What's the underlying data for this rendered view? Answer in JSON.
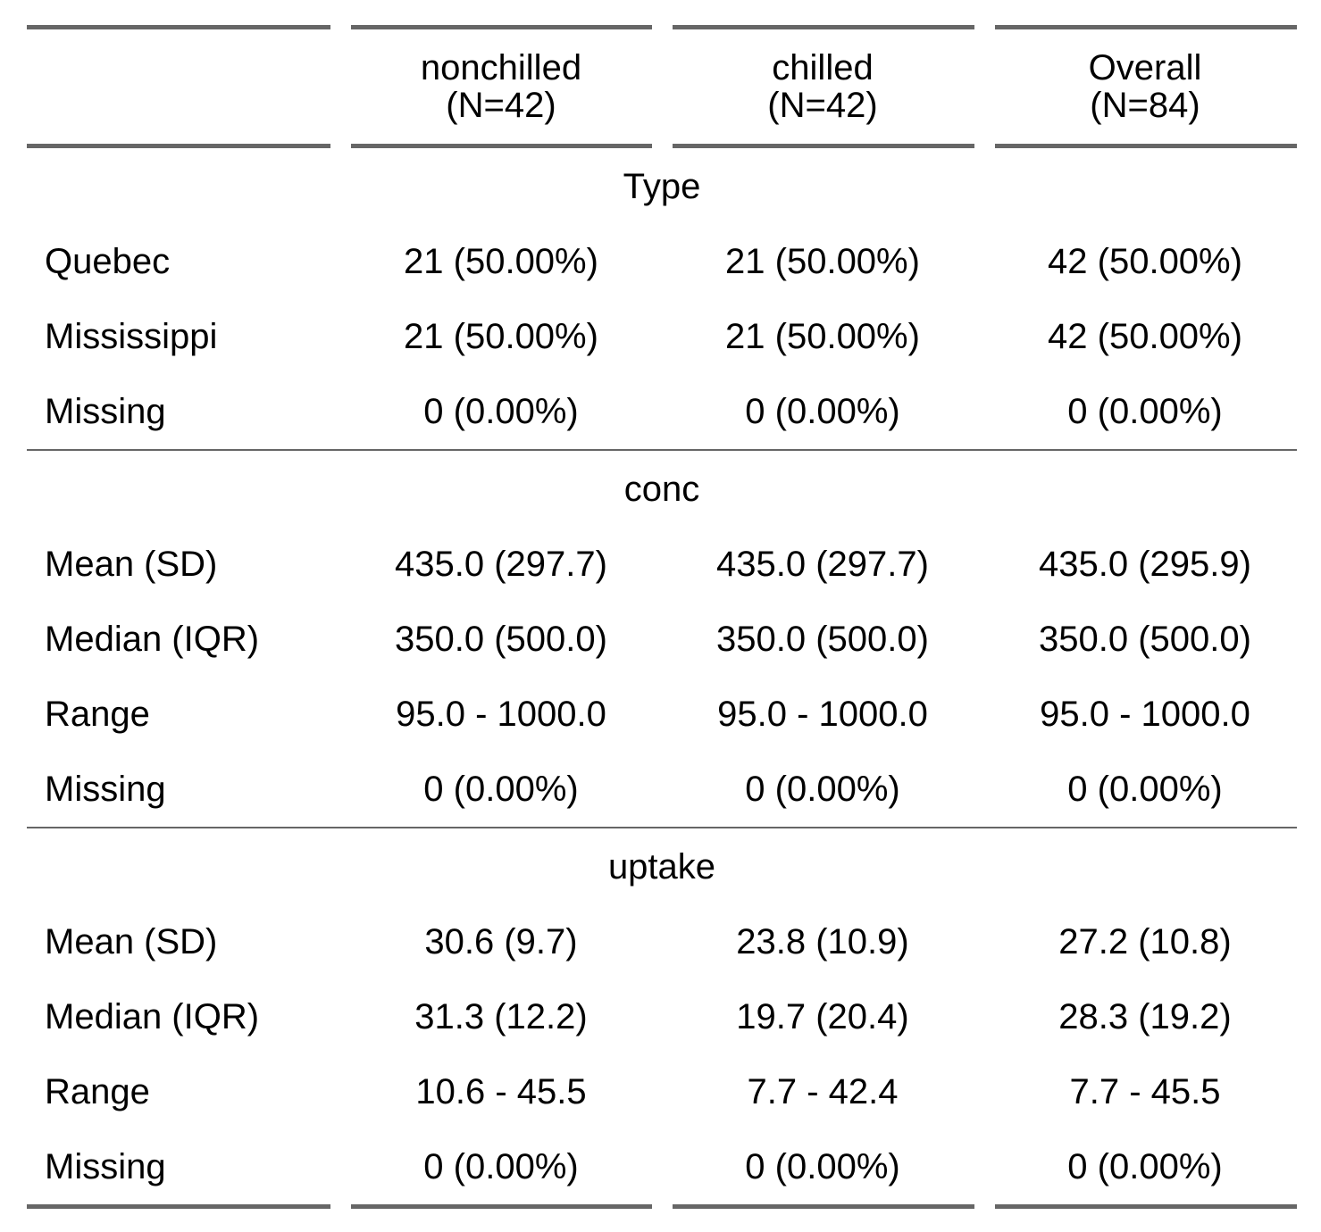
{
  "header": {
    "columns": [
      {
        "name": "nonchilled",
        "n": "(N=42)"
      },
      {
        "name": "chilled",
        "n": "(N=42)"
      },
      {
        "name": "Overall",
        "n": "(N=84)"
      }
    ]
  },
  "sections": [
    {
      "title": "Type",
      "rows": [
        {
          "label": "Quebec",
          "values": [
            "21 (50.00%)",
            "21 (50.00%)",
            "42 (50.00%)"
          ]
        },
        {
          "label": "Mississippi",
          "values": [
            "21 (50.00%)",
            "21 (50.00%)",
            "42 (50.00%)"
          ]
        },
        {
          "label": "Missing",
          "values": [
            "0 (0.00%)",
            "0 (0.00%)",
            "0 (0.00%)"
          ]
        }
      ]
    },
    {
      "title": "conc",
      "rows": [
        {
          "label": "Mean (SD)",
          "values": [
            "435.0 (297.7)",
            "435.0 (297.7)",
            "435.0 (295.9)"
          ]
        },
        {
          "label": "Median (IQR)",
          "values": [
            "350.0 (500.0)",
            "350.0 (500.0)",
            "350.0 (500.0)"
          ]
        },
        {
          "label": "Range",
          "values": [
            "95.0 - 1000.0",
            "95.0 - 1000.0",
            "95.0 - 1000.0"
          ]
        },
        {
          "label": "Missing",
          "values": [
            "0 (0.00%)",
            "0 (0.00%)",
            "0 (0.00%)"
          ]
        }
      ]
    },
    {
      "title": "uptake",
      "rows": [
        {
          "label": "Mean (SD)",
          "values": [
            "30.6 (9.7)",
            "23.8 (10.9)",
            "27.2 (10.8)"
          ]
        },
        {
          "label": "Median (IQR)",
          "values": [
            "31.3 (12.2)",
            "19.7 (20.4)",
            "28.3 (19.2)"
          ]
        },
        {
          "label": "Range",
          "values": [
            "10.6 - 45.5",
            "7.7 - 42.4",
            "7.7 - 45.5"
          ]
        },
        {
          "label": "Missing",
          "values": [
            "0 (0.00%)",
            "0 (0.00%)",
            "0 (0.00%)"
          ]
        }
      ]
    }
  ]
}
